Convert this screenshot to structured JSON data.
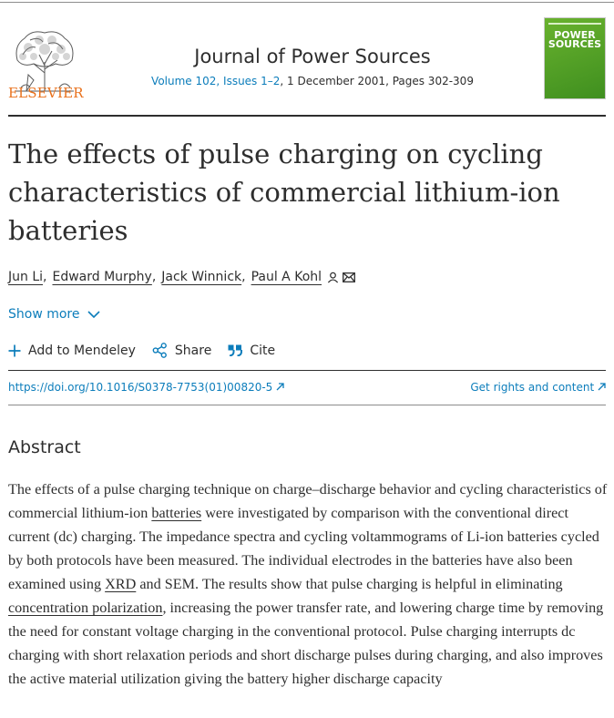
{
  "header": {
    "publisher": "ELSEVIER",
    "journal_title": "Journal of Power Sources",
    "volume_link": "Volume 102, Issues 1–2",
    "date_pages": ", 1 December 2001, Pages 302-309",
    "cover_text": "POWER\nSOURCES"
  },
  "article": {
    "title": "The effects of pulse charging on cycling characteristics of commercial lithium-ion batteries",
    "authors": [
      "Jun Li",
      "Edward Murphy",
      "Jack Winnick",
      "Paul A Kohl"
    ],
    "author_separator": ",",
    "show_more": "Show more"
  },
  "actions": {
    "add_mendeley": "Add to Mendeley",
    "share": "Share",
    "cite": "Cite"
  },
  "links": {
    "doi": "https://doi.org/10.1016/S0378-7753(01)00820-5",
    "rights": "Get rights and content"
  },
  "abstract": {
    "heading": "Abstract",
    "t1": "The effects of a pulse charging technique on charge–discharge behavior and cycling characteristics of commercial lithium-ion ",
    "k1": "batteries",
    "t2": " were investigated by comparison with the conventional direct current (dc) charging. The impedance spectra and cycling voltammograms of Li-ion batteries cycled by both protocols have been measured. The individual electrodes in the batteries have also been examined using ",
    "k2": "XRD",
    "t3": " and SEM. The results show that pulse charging is helpful in eliminating ",
    "k3": "concentration polarization",
    "t4": ", increasing the power transfer rate, and lowering charge time by removing the need for constant voltage charging in the conventional protocol. Pulse charging interrupts dc charging with short relaxation periods and short discharge pulses during charging, and also improves the active material utilization giving the battery higher discharge capacity"
  },
  "colors": {
    "link": "#0c7dbb",
    "elsevier_orange": "#e9711c",
    "cover_green": "#4f9f26",
    "text": "#2e2e2e"
  },
  "icons": [
    "elsevier-tree-icon",
    "person-icon",
    "envelope-icon",
    "chevron-down-icon",
    "plus-icon",
    "share-icon",
    "quote-icon",
    "external-arrow-icon"
  ]
}
